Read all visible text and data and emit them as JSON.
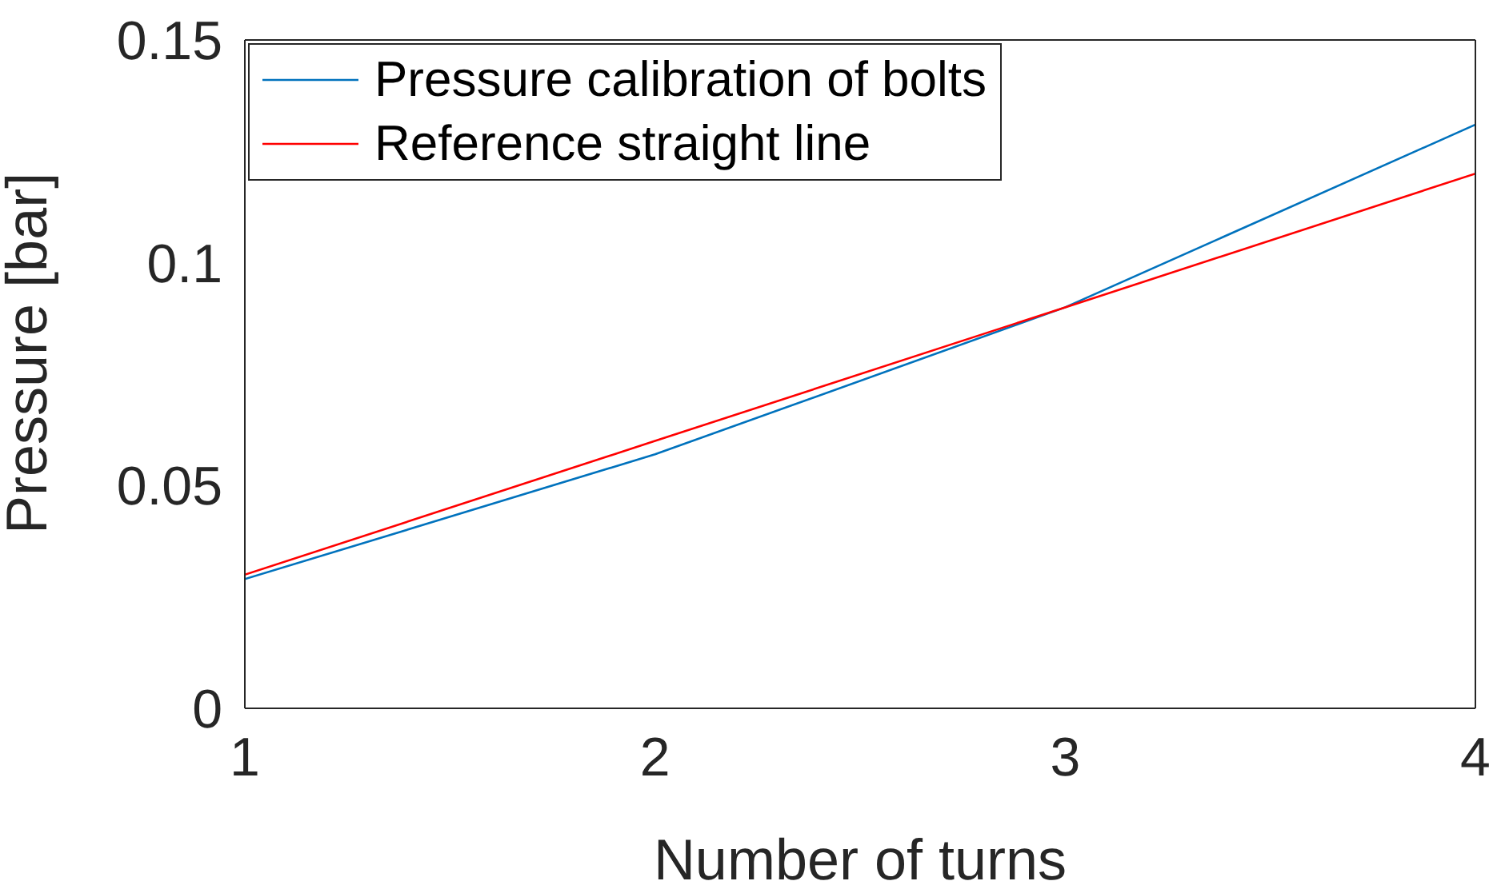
{
  "chart_data": {
    "type": "line",
    "xlabel": "Number of turns",
    "ylabel": "Pressure [bar]",
    "x": [
      1,
      2,
      3,
      4
    ],
    "series": [
      {
        "name": "Pressure calibration of bolts",
        "color": "#0072bd",
        "values": [
          0.029,
          0.057,
          0.09,
          0.131
        ]
      },
      {
        "name": "Reference straight line",
        "color": "#ff0000",
        "values": [
          0.03,
          0.06,
          0.09,
          0.12
        ]
      }
    ],
    "xlim": [
      1,
      4
    ],
    "xticks": [
      1,
      2,
      3,
      4
    ],
    "ylim": [
      0,
      0.15
    ],
    "yticks": [
      0,
      0.05,
      0.1,
      0.15
    ],
    "grid": false,
    "legend": "top left"
  }
}
